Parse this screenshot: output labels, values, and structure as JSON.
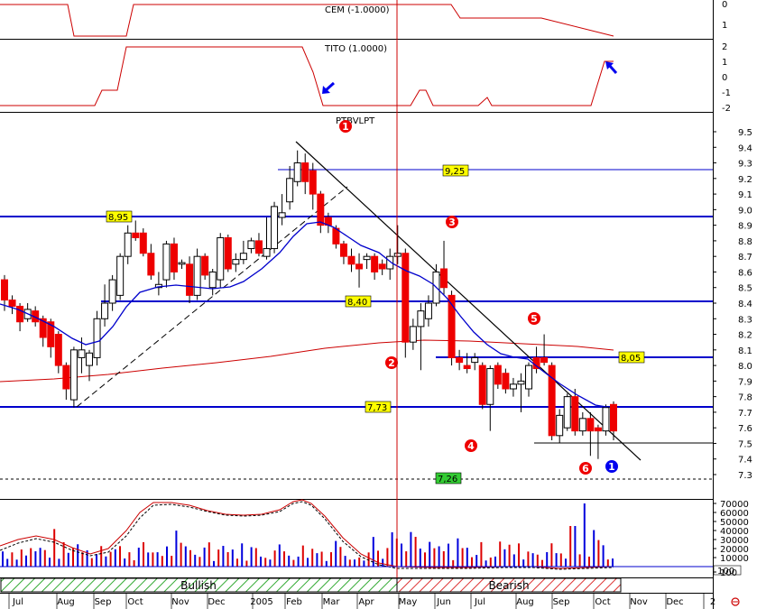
{
  "panels": {
    "cem": {
      "label": "CEM (-1.0000)",
      "ticks": [
        "0",
        "1"
      ]
    },
    "tito": {
      "label": "TITO (1.0000)",
      "ticks": [
        "2",
        "1",
        "0",
        "-1",
        "-2"
      ]
    },
    "price": {
      "label": "PTBVLPT",
      "ticks": [
        "9.5",
        "9.4",
        "9.3",
        "9.2",
        "9.1",
        "9.0",
        "8.9",
        "8.8",
        "8.7",
        "8.6",
        "8.5",
        "8.4",
        "8.3",
        "8.2",
        "8.1",
        "8.0",
        "7.9",
        "7.8",
        "7.7",
        "7.6",
        "7.5",
        "7.4",
        "7.3"
      ],
      "level_tags": [
        "9,25",
        "8,95",
        "8,40",
        "8,05",
        "7,73",
        "7,26"
      ],
      "wave_labels": [
        "1",
        "2",
        "3",
        "4",
        "5",
        "6",
        "1"
      ]
    },
    "volume": {
      "ticks": [
        "70000",
        "60000",
        "50000",
        "40000",
        "30000",
        "20000",
        "10000",
        "100"
      ],
      "readout": "100"
    }
  },
  "phase_bar": {
    "bullish": "Bullish",
    "bearish": "Bearish"
  },
  "x_axis": {
    "months": [
      "Jul",
      "Aug",
      "Sep",
      "Oct",
      "Nov",
      "Dec",
      "2005",
      "Feb",
      "Mar",
      "Apr",
      "May",
      "Jun",
      "Jul",
      "Aug",
      "Sep",
      "Oct",
      "Nov",
      "Dec",
      "2"
    ]
  },
  "chart_data": {
    "type": "candlestick",
    "title": "PTBVLPT",
    "ylim": [
      7.25,
      9.55
    ],
    "horizontal_levels": [
      9.25,
      8.95,
      8.4,
      8.05,
      7.73,
      7.26,
      7.5
    ],
    "candles": [
      {
        "o": 8.55,
        "h": 8.58,
        "l": 8.35,
        "c": 8.42
      },
      {
        "o": 8.42,
        "h": 8.45,
        "l": 8.33,
        "c": 8.38
      },
      {
        "o": 8.38,
        "h": 8.4,
        "l": 8.22,
        "c": 8.28
      },
      {
        "o": 8.3,
        "h": 8.4,
        "l": 8.28,
        "c": 8.36
      },
      {
        "o": 8.35,
        "h": 8.38,
        "l": 8.25,
        "c": 8.28
      },
      {
        "o": 8.3,
        "h": 8.32,
        "l": 8.12,
        "c": 8.18
      },
      {
        "o": 8.28,
        "h": 8.3,
        "l": 8.05,
        "c": 8.12
      },
      {
        "o": 8.2,
        "h": 8.22,
        "l": 7.95,
        "c": 8.0
      },
      {
        "o": 8.0,
        "h": 8.02,
        "l": 7.78,
        "c": 7.85
      },
      {
        "o": 7.78,
        "h": 8.12,
        "l": 7.73,
        "c": 8.1
      },
      {
        "o": 8.05,
        "h": 8.18,
        "l": 7.95,
        "c": 8.1
      },
      {
        "o": 8.0,
        "h": 8.1,
        "l": 7.9,
        "c": 8.08
      },
      {
        "o": 8.05,
        "h": 8.35,
        "l": 8.0,
        "c": 8.3
      },
      {
        "o": 8.3,
        "h": 8.52,
        "l": 8.25,
        "c": 8.4
      },
      {
        "o": 8.4,
        "h": 8.58,
        "l": 8.35,
        "c": 8.55
      },
      {
        "o": 8.45,
        "h": 8.72,
        "l": 8.42,
        "c": 8.7
      },
      {
        "o": 8.7,
        "h": 8.9,
        "l": 8.65,
        "c": 8.85
      },
      {
        "o": 8.85,
        "h": 8.93,
        "l": 8.8,
        "c": 8.82
      },
      {
        "o": 8.85,
        "h": 8.88,
        "l": 8.7,
        "c": 8.72
      },
      {
        "o": 8.72,
        "h": 8.78,
        "l": 8.55,
        "c": 8.58
      },
      {
        "o": 8.5,
        "h": 8.6,
        "l": 8.45,
        "c": 8.52
      },
      {
        "o": 8.55,
        "h": 8.8,
        "l": 8.5,
        "c": 8.78
      },
      {
        "o": 8.78,
        "h": 8.82,
        "l": 8.55,
        "c": 8.6
      },
      {
        "o": 8.65,
        "h": 8.68,
        "l": 8.62,
        "c": 8.66
      },
      {
        "o": 8.65,
        "h": 8.7,
        "l": 8.4,
        "c": 8.45
      },
      {
        "o": 8.45,
        "h": 8.75,
        "l": 8.42,
        "c": 8.7
      },
      {
        "o": 8.7,
        "h": 8.72,
        "l": 8.55,
        "c": 8.58
      },
      {
        "o": 8.5,
        "h": 8.62,
        "l": 8.45,
        "c": 8.6
      },
      {
        "o": 8.55,
        "h": 8.85,
        "l": 8.5,
        "c": 8.82
      },
      {
        "o": 8.82,
        "h": 8.84,
        "l": 8.6,
        "c": 8.62
      },
      {
        "o": 8.65,
        "h": 8.72,
        "l": 8.6,
        "c": 8.68
      },
      {
        "o": 8.68,
        "h": 8.8,
        "l": 8.65,
        "c": 8.72
      },
      {
        "o": 8.75,
        "h": 8.82,
        "l": 8.72,
        "c": 8.8
      },
      {
        "o": 8.8,
        "h": 8.85,
        "l": 8.7,
        "c": 8.72
      },
      {
        "o": 8.7,
        "h": 8.95,
        "l": 8.68,
        "c": 8.75
      },
      {
        "o": 8.75,
        "h": 9.05,
        "l": 8.72,
        "c": 9.02
      },
      {
        "o": 8.95,
        "h": 9.1,
        "l": 8.9,
        "c": 8.98
      },
      {
        "o": 9.05,
        "h": 9.28,
        "l": 9.0,
        "c": 9.2
      },
      {
        "o": 9.18,
        "h": 9.38,
        "l": 9.15,
        "c": 9.3
      },
      {
        "o": 9.3,
        "h": 9.36,
        "l": 9.1,
        "c": 9.18
      },
      {
        "o": 9.25,
        "h": 9.3,
        "l": 9.0,
        "c": 9.1
      },
      {
        "o": 9.1,
        "h": 9.12,
        "l": 8.85,
        "c": 8.9
      },
      {
        "o": 8.95,
        "h": 8.98,
        "l": 8.85,
        "c": 8.9
      },
      {
        "o": 8.88,
        "h": 8.9,
        "l": 8.75,
        "c": 8.78
      },
      {
        "o": 8.78,
        "h": 8.8,
        "l": 8.65,
        "c": 8.7
      },
      {
        "o": 8.7,
        "h": 8.75,
        "l": 8.6,
        "c": 8.65
      },
      {
        "o": 8.65,
        "h": 8.72,
        "l": 8.5,
        "c": 8.62
      },
      {
        "o": 8.68,
        "h": 8.72,
        "l": 8.62,
        "c": 8.7
      },
      {
        "o": 8.7,
        "h": 8.72,
        "l": 8.55,
        "c": 8.6
      },
      {
        "o": 8.65,
        "h": 8.68,
        "l": 8.58,
        "c": 8.62
      },
      {
        "o": 8.62,
        "h": 8.75,
        "l": 8.55,
        "c": 8.7
      },
      {
        "o": 8.7,
        "h": 8.9,
        "l": 8.65,
        "c": 8.72
      },
      {
        "o": 8.72,
        "h": 8.75,
        "l": 8.05,
        "c": 8.15
      },
      {
        "o": 8.15,
        "h": 8.3,
        "l": 8.1,
        "c": 8.25
      },
      {
        "o": 8.25,
        "h": 8.4,
        "l": 7.97,
        "c": 8.35
      },
      {
        "o": 8.3,
        "h": 8.45,
        "l": 8.25,
        "c": 8.4
      },
      {
        "o": 8.4,
        "h": 8.65,
        "l": 8.38,
        "c": 8.6
      },
      {
        "o": 8.62,
        "h": 8.8,
        "l": 8.45,
        "c": 8.5
      },
      {
        "o": 8.45,
        "h": 8.48,
        "l": 8.0,
        "c": 8.05
      },
      {
        "o": 8.05,
        "h": 8.1,
        "l": 7.97,
        "c": 8.02
      },
      {
        "o": 8.0,
        "h": 8.08,
        "l": 7.95,
        "c": 7.98
      },
      {
        "o": 8.02,
        "h": 8.08,
        "l": 7.97,
        "c": 8.05
      },
      {
        "o": 8.0,
        "h": 8.02,
        "l": 7.72,
        "c": 7.75
      },
      {
        "o": 7.75,
        "h": 8.0,
        "l": 7.58,
        "c": 7.98
      },
      {
        "o": 8.0,
        "h": 8.02,
        "l": 7.85,
        "c": 7.88
      },
      {
        "o": 7.95,
        "h": 7.98,
        "l": 7.82,
        "c": 7.85
      },
      {
        "o": 7.85,
        "h": 7.92,
        "l": 7.8,
        "c": 7.88
      },
      {
        "o": 7.88,
        "h": 7.95,
        "l": 7.7,
        "c": 7.9
      },
      {
        "o": 7.85,
        "h": 8.02,
        "l": 7.8,
        "c": 8.0
      },
      {
        "o": 8.05,
        "h": 8.12,
        "l": 7.95,
        "c": 7.98
      },
      {
        "o": 8.05,
        "h": 8.2,
        "l": 8.0,
        "c": 8.02
      },
      {
        "o": 8.0,
        "h": 8.02,
        "l": 7.52,
        "c": 7.55
      },
      {
        "o": 7.55,
        "h": 7.72,
        "l": 7.5,
        "c": 7.68
      },
      {
        "o": 7.6,
        "h": 7.82,
        "l": 7.58,
        "c": 7.8
      },
      {
        "o": 7.8,
        "h": 7.85,
        "l": 7.55,
        "c": 7.58
      },
      {
        "o": 7.58,
        "h": 7.7,
        "l": 7.55,
        "c": 7.66
      },
      {
        "o": 7.66,
        "h": 7.7,
        "l": 7.42,
        "c": 7.58
      },
      {
        "o": 7.6,
        "h": 7.62,
        "l": 7.4,
        "c": 7.58
      },
      {
        "o": 7.58,
        "h": 7.75,
        "l": 7.55,
        "c": 7.73
      },
      {
        "o": 7.75,
        "h": 7.77,
        "l": 7.52,
        "c": 7.58
      }
    ]
  }
}
